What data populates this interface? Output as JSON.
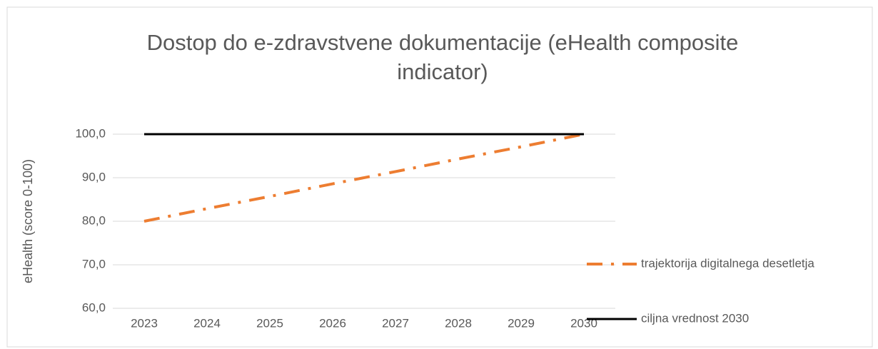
{
  "chart_data": {
    "type": "line",
    "title": "Dostop do e-zdravstvene dokumentacije (eHealth composite indicator)",
    "y_label": "eHealth (score 0-100)",
    "categories": [
      "2023",
      "2024",
      "2025",
      "2026",
      "2027",
      "2028",
      "2029",
      "2030"
    ],
    "series": [
      {
        "name": "trajektorija digitalnega desetletja",
        "color": "#ed7d31",
        "style": "dash-dot",
        "values": [
          80,
          82.9,
          85.7,
          88.6,
          91.4,
          94.3,
          97.1,
          100
        ]
      },
      {
        "name": "ciljna vrednost 2030",
        "color": "#000000",
        "style": "solid",
        "values": [
          100,
          100,
          100,
          100,
          100,
          100,
          100,
          100
        ]
      }
    ],
    "ylim": [
      60,
      100
    ],
    "yticks": [
      {
        "value": 60,
        "label": "60,0"
      },
      {
        "value": 70,
        "label": "70,0"
      },
      {
        "value": 80,
        "label": "80,0"
      },
      {
        "value": 90,
        "label": "90,0"
      },
      {
        "value": 100,
        "label": "100,0"
      }
    ],
    "grid": true,
    "legend": "right"
  }
}
